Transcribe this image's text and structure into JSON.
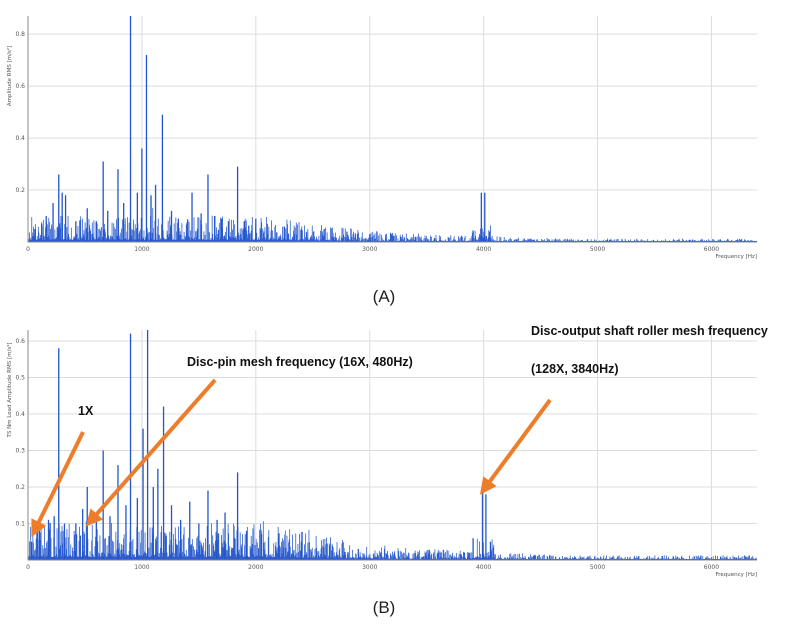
{
  "chart_data": [
    {
      "type": "line",
      "caption": "(A)",
      "xlabel": "Frequency [Hz]",
      "ylabel": "Amplitude RMS [m/s²]",
      "xlim": [
        0,
        6400
      ],
      "ylim": [
        0,
        0.87
      ],
      "x_ticks": [
        0,
        1000,
        2000,
        3000,
        4000,
        5000,
        6000
      ],
      "y_ticks": [
        0.2,
        0.4,
        0.6,
        0.8
      ],
      "y_tick_labels": [
        "0.2",
        "0.4",
        "0.6",
        "0.8"
      ],
      "grid": true,
      "series_color": "#2255cc",
      "peaks": [
        {
          "x": 60,
          "y": 0.05
        },
        {
          "x": 120,
          "y": 0.07
        },
        {
          "x": 160,
          "y": 0.1
        },
        {
          "x": 220,
          "y": 0.15
        },
        {
          "x": 270,
          "y": 0.26
        },
        {
          "x": 300,
          "y": 0.19
        },
        {
          "x": 330,
          "y": 0.18
        },
        {
          "x": 420,
          "y": 0.08
        },
        {
          "x": 520,
          "y": 0.13
        },
        {
          "x": 600,
          "y": 0.08
        },
        {
          "x": 660,
          "y": 0.31
        },
        {
          "x": 700,
          "y": 0.12
        },
        {
          "x": 790,
          "y": 0.28
        },
        {
          "x": 840,
          "y": 0.15
        },
        {
          "x": 900,
          "y": 0.87
        },
        {
          "x": 960,
          "y": 0.19
        },
        {
          "x": 1000,
          "y": 0.36
        },
        {
          "x": 1040,
          "y": 0.72
        },
        {
          "x": 1080,
          "y": 0.18
        },
        {
          "x": 1120,
          "y": 0.22
        },
        {
          "x": 1180,
          "y": 0.49
        },
        {
          "x": 1260,
          "y": 0.12
        },
        {
          "x": 1320,
          "y": 0.09
        },
        {
          "x": 1440,
          "y": 0.19
        },
        {
          "x": 1520,
          "y": 0.11
        },
        {
          "x": 1580,
          "y": 0.26
        },
        {
          "x": 1640,
          "y": 0.1
        },
        {
          "x": 1700,
          "y": 0.09
        },
        {
          "x": 1760,
          "y": 0.08
        },
        {
          "x": 1840,
          "y": 0.29
        },
        {
          "x": 1900,
          "y": 0.08
        },
        {
          "x": 2000,
          "y": 0.09
        },
        {
          "x": 2100,
          "y": 0.07
        },
        {
          "x": 2250,
          "y": 0.06
        },
        {
          "x": 2400,
          "y": 0.05
        },
        {
          "x": 2600,
          "y": 0.05
        },
        {
          "x": 2800,
          "y": 0.04
        },
        {
          "x": 3000,
          "y": 0.03
        },
        {
          "x": 3400,
          "y": 0.02
        },
        {
          "x": 3980,
          "y": 0.19
        },
        {
          "x": 4010,
          "y": 0.19
        },
        {
          "x": 4050,
          "y": 0.04
        }
      ]
    },
    {
      "type": "line",
      "caption": "(B)",
      "xlabel": "Frequency [Hz]",
      "ylabel": "TS Nm Load Amplitude RMS [m/s²]",
      "xlim": [
        0,
        6400
      ],
      "ylim": [
        0,
        0.63
      ],
      "x_ticks": [
        0,
        1000,
        2000,
        3000,
        4000,
        5000,
        6000
      ],
      "y_ticks": [
        0.1,
        0.2,
        0.3,
        0.4,
        0.5,
        0.6
      ],
      "y_tick_labels": [
        "0.1",
        "0.2",
        "0.3",
        "0.4",
        "0.5",
        "0.6"
      ],
      "grid": true,
      "series_color": "#2255cc",
      "peaks": [
        {
          "x": 30,
          "y": 0.05
        },
        {
          "x": 100,
          "y": 0.08
        },
        {
          "x": 180,
          "y": 0.11
        },
        {
          "x": 230,
          "y": 0.12
        },
        {
          "x": 270,
          "y": 0.58
        },
        {
          "x": 320,
          "y": 0.1
        },
        {
          "x": 420,
          "y": 0.1
        },
        {
          "x": 480,
          "y": 0.14
        },
        {
          "x": 520,
          "y": 0.2
        },
        {
          "x": 600,
          "y": 0.12
        },
        {
          "x": 660,
          "y": 0.3
        },
        {
          "x": 720,
          "y": 0.12
        },
        {
          "x": 790,
          "y": 0.26
        },
        {
          "x": 860,
          "y": 0.15
        },
        {
          "x": 900,
          "y": 0.62
        },
        {
          "x": 960,
          "y": 0.17
        },
        {
          "x": 1010,
          "y": 0.36
        },
        {
          "x": 1050,
          "y": 0.63
        },
        {
          "x": 1100,
          "y": 0.2
        },
        {
          "x": 1140,
          "y": 0.25
        },
        {
          "x": 1190,
          "y": 0.42
        },
        {
          "x": 1260,
          "y": 0.15
        },
        {
          "x": 1340,
          "y": 0.11
        },
        {
          "x": 1420,
          "y": 0.16
        },
        {
          "x": 1500,
          "y": 0.1
        },
        {
          "x": 1580,
          "y": 0.19
        },
        {
          "x": 1660,
          "y": 0.11
        },
        {
          "x": 1730,
          "y": 0.13
        },
        {
          "x": 1840,
          "y": 0.24
        },
        {
          "x": 1920,
          "y": 0.08
        },
        {
          "x": 2050,
          "y": 0.07
        },
        {
          "x": 2200,
          "y": 0.06
        },
        {
          "x": 2400,
          "y": 0.05
        },
        {
          "x": 2650,
          "y": 0.04
        },
        {
          "x": 2900,
          "y": 0.03
        },
        {
          "x": 3300,
          "y": 0.02
        },
        {
          "x": 3990,
          "y": 0.19
        },
        {
          "x": 4020,
          "y": 0.18
        },
        {
          "x": 4060,
          "y": 0.05
        }
      ],
      "annotations": [
        {
          "text": "1X",
          "target_x": 30,
          "target_y": 0.06
        },
        {
          "text": "Disc-pin mesh frequency (16X, 480Hz)",
          "target_x": 480,
          "target_y": 0.09
        },
        {
          "text": "Disc-output shaft roller mesh frequency",
          "target_x": 3980,
          "target_y": 0.19
        },
        {
          "text": "(128X, 3840Hz)",
          "target_x": 3980,
          "target_y": 0.19
        }
      ],
      "annotation_color": "#ee7d2b"
    }
  ]
}
